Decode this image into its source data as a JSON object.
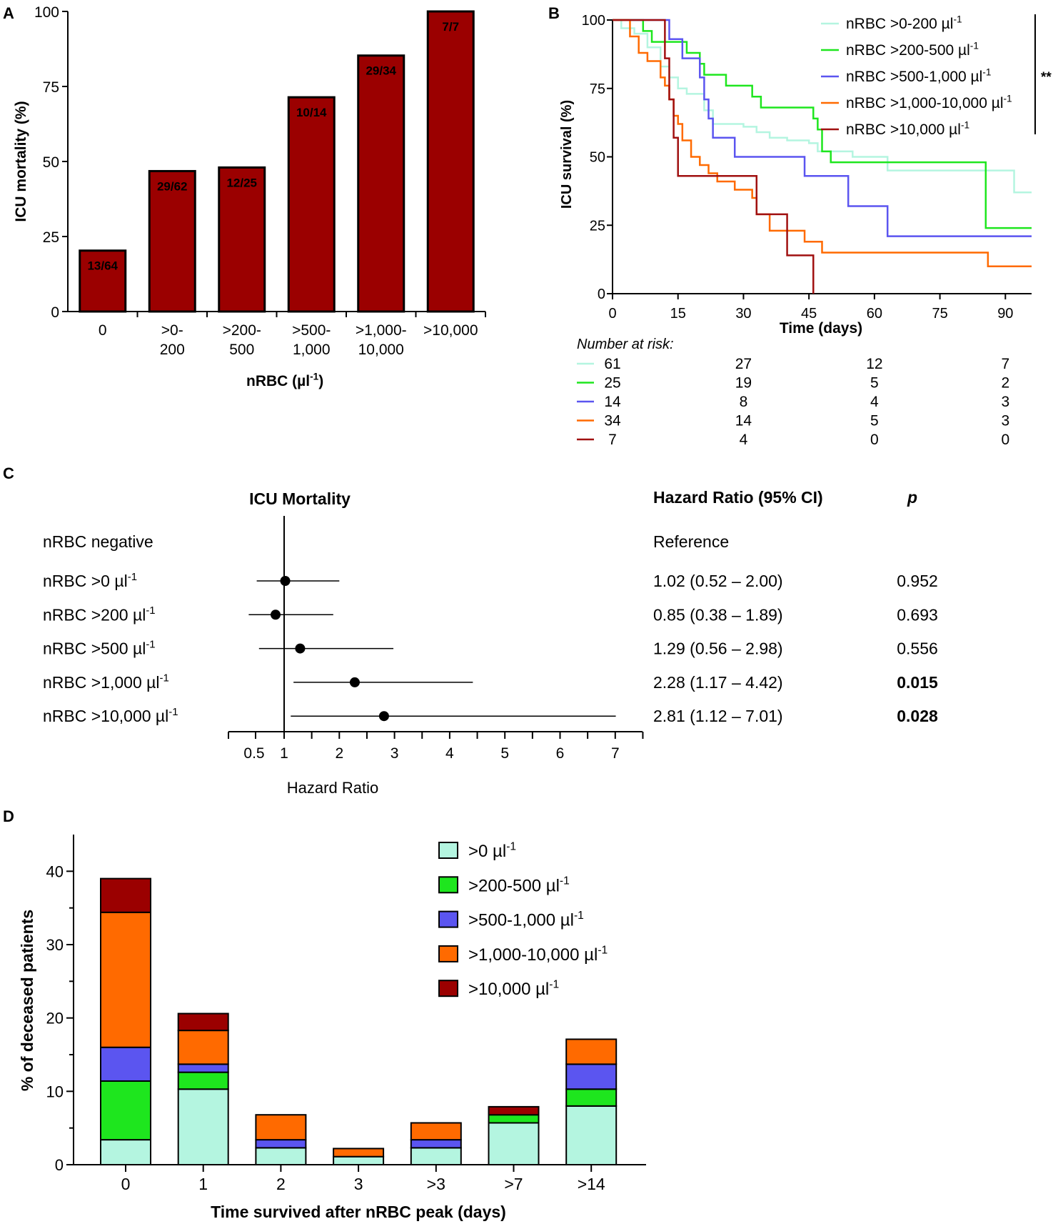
{
  "colors": {
    "bar_dark_red": "#9b0000",
    "nrbc_0_200": "#b4f5e0",
    "nrbc_200_500": "#1ee61e",
    "nrbc_500_1000": "#5b55f0",
    "nrbc_1000_10000": "#ff6a00",
    "nrbc_10000": "#a01010"
  },
  "chart_data": [
    {
      "panel": "A",
      "type": "bar",
      "ylabel": "ICU mortality (%)",
      "xlabel": "nRBC (µl-1)",
      "xlabel_main": "nRBC (µl",
      "xlabel_sup": "-1",
      "xlabel_close": ")",
      "ylim": [
        0,
        100
      ],
      "yticks": [
        0,
        25,
        50,
        75,
        100
      ],
      "categories": [
        [
          "0"
        ],
        [
          ">0-",
          "200"
        ],
        [
          ">200-",
          "500"
        ],
        [
          ">500-",
          "1,000"
        ],
        [
          ">1,000-",
          "10,000"
        ],
        [
          ">10,000"
        ]
      ],
      "values": [
        20.3,
        46.8,
        48.0,
        71.4,
        85.3,
        100
      ],
      "labels": [
        "13/64",
        "29/62",
        "12/25",
        "10/14",
        "29/34",
        "7/7"
      ]
    },
    {
      "panel": "B",
      "type": "line",
      "ylabel": "ICU survival (%)",
      "xlabel": "Time (days)",
      "xlim": [
        0,
        96
      ],
      "ylim": [
        0,
        100
      ],
      "xticks": [
        0,
        15,
        30,
        45,
        60,
        75,
        90
      ],
      "yticks": [
        0,
        25,
        50,
        75,
        100
      ],
      "significance": "**",
      "series": [
        {
          "name": "nRBC >0-200",
          "unit": "µl",
          "sup": "-1",
          "color": "#b4f5e0",
          "steps": [
            [
              0,
              100
            ],
            [
              2,
              97
            ],
            [
              5,
              95
            ],
            [
              8,
              90
            ],
            [
              11,
              83
            ],
            [
              13,
              79
            ],
            [
              15,
              75
            ],
            [
              17,
              73
            ],
            [
              21,
              67
            ],
            [
              23,
              62
            ],
            [
              30,
              61
            ],
            [
              33,
              59
            ],
            [
              36,
              57
            ],
            [
              40,
              56
            ],
            [
              45,
              55
            ],
            [
              47,
              52
            ],
            [
              55,
              50
            ],
            [
              63,
              45
            ],
            [
              85,
              45
            ],
            [
              92,
              37
            ],
            [
              96,
              37
            ]
          ]
        },
        {
          "name": "nRBC >200-500",
          "unit": "µl",
          "sup": "-1",
          "color": "#1ee61e",
          "steps": [
            [
              0,
              100
            ],
            [
              7,
              96
            ],
            [
              9,
              92
            ],
            [
              17,
              88
            ],
            [
              20,
              84
            ],
            [
              21,
              80
            ],
            [
              26,
              76
            ],
            [
              32,
              72
            ],
            [
              34,
              68
            ],
            [
              46,
              64
            ],
            [
              47,
              60
            ],
            [
              48,
              52
            ],
            [
              50,
              48
            ],
            [
              85,
              48
            ],
            [
              85.5,
              24
            ],
            [
              96,
              24
            ]
          ]
        },
        {
          "name": "nRBC >500-1,000",
          "unit": "µl",
          "sup": "-1",
          "color": "#5b55f0",
          "steps": [
            [
              0,
              100
            ],
            [
              13,
              93
            ],
            [
              16,
              86
            ],
            [
              20,
              79
            ],
            [
              21,
              71
            ],
            [
              22,
              64
            ],
            [
              23,
              57
            ],
            [
              28,
              50
            ],
            [
              44,
              43
            ],
            [
              54,
              32
            ],
            [
              63,
              21
            ],
            [
              96,
              21
            ]
          ]
        },
        {
          "name": "nRBC >1,000-10,000",
          "unit": "µl",
          "sup": "-1",
          "color": "#ff6a00",
          "steps": [
            [
              0,
              100
            ],
            [
              4,
              94
            ],
            [
              6,
              88
            ],
            [
              8,
              85
            ],
            [
              11,
              79
            ],
            [
              12,
              76
            ],
            [
              13,
              71
            ],
            [
              14,
              65
            ],
            [
              15,
              62
            ],
            [
              16,
              56
            ],
            [
              18,
              50
            ],
            [
              20,
              47
            ],
            [
              22,
              44
            ],
            [
              24,
              41
            ],
            [
              28,
              38
            ],
            [
              32,
              35
            ],
            [
              33,
              29
            ],
            [
              36,
              23
            ],
            [
              44,
              19
            ],
            [
              48,
              15
            ],
            [
              85,
              15
            ],
            [
              86,
              10
            ],
            [
              96,
              10
            ]
          ]
        },
        {
          "name": "nRBC >10,000",
          "unit": "µl",
          "sup": "-1",
          "color": "#a01010",
          "steps": [
            [
              0,
              100
            ],
            [
              12,
              86
            ],
            [
              13,
              71
            ],
            [
              14,
              57
            ],
            [
              15,
              43
            ],
            [
              33,
              29
            ],
            [
              40,
              14
            ],
            [
              46,
              0
            ]
          ]
        }
      ],
      "risk_title": "Number at risk:",
      "risk_times": [
        0,
        30,
        60,
        90
      ],
      "risk_table": [
        [
          "61",
          "27",
          "12",
          "7"
        ],
        [
          "25",
          "19",
          "5",
          "2"
        ],
        [
          "14",
          "8",
          "4",
          "3"
        ],
        [
          "34",
          "14",
          "5",
          "3"
        ],
        [
          "7",
          "4",
          "0",
          "0"
        ]
      ]
    },
    {
      "panel": "C",
      "type": "forest",
      "title": "ICU Mortality",
      "col_hr": "Hazard Ratio (95% CI)",
      "col_p": "p",
      "xlabel": "Hazard  Ratio",
      "xticks": [
        0.5,
        1,
        2,
        3,
        4,
        5,
        6,
        7
      ],
      "reference_label": "nRBC negative",
      "reference_text": "Reference",
      "rows": [
        {
          "label": "nRBC >0 µl",
          "sup": "-1",
          "hr": 1.02,
          "lo": 0.52,
          "hi": 2.0,
          "text": "1.02 (0.52 – 2.00)",
          "p": "0.952",
          "bold": false
        },
        {
          "label": "nRBC >200 µl",
          "sup": "-1",
          "hr": 0.85,
          "lo": 0.38,
          "hi": 1.89,
          "text": "0.85 (0.38 – 1.89)",
          "p": "0.693",
          "bold": false
        },
        {
          "label": "nRBC >500 µl",
          "sup": "-1",
          "hr": 1.29,
          "lo": 0.56,
          "hi": 2.98,
          "text": "1.29 (0.56 – 2.98)",
          "p": "0.556",
          "bold": false
        },
        {
          "label": "nRBC >1,000 µl",
          "sup": "-1",
          "hr": 2.28,
          "lo": 1.17,
          "hi": 4.42,
          "text": "2.28 (1.17 – 4.42)",
          "p": "0.015",
          "bold": true
        },
        {
          "label": "nRBC >10,000 µl",
          "sup": "-1",
          "hr": 2.81,
          "lo": 1.12,
          "hi": 7.01,
          "text": "2.81 (1.12 – 7.01)",
          "p": "0.028",
          "bold": true
        }
      ]
    },
    {
      "panel": "D",
      "type": "stacked-bar",
      "ylabel": "% of deceased patients",
      "xlabel": "Time survived after nRBC peak (days)",
      "ylim": [
        0,
        45
      ],
      "yticks": [
        0,
        10,
        20,
        30,
        40
      ],
      "categories": [
        "0",
        "1",
        "2",
        "3",
        ">3",
        ">7",
        ">14"
      ],
      "series": [
        {
          "name": ">0 µl",
          "sup": "-1",
          "color": "#b4f5e0",
          "values": [
            3.4,
            10.3,
            2.3,
            1.1,
            2.3,
            5.7,
            8.0
          ]
        },
        {
          "name": ">200-500 µl",
          "sup": "-1",
          "color": "#1ee61e",
          "values": [
            8.0,
            2.3,
            0,
            0,
            0,
            1.1,
            2.3
          ]
        },
        {
          "name": ">500-1,000 µl",
          "sup": "-1",
          "color": "#5b55f0",
          "values": [
            4.6,
            1.1,
            1.1,
            0,
            1.1,
            0,
            3.4
          ]
        },
        {
          "name": ">1,000-10,000 µl",
          "sup": "-1",
          "color": "#ff6a00",
          "values": [
            18.4,
            4.6,
            3.4,
            1.1,
            2.3,
            0,
            3.4
          ]
        },
        {
          "name": ">10,000 µl",
          "sup": "-1",
          "color": "#9b0000",
          "values": [
            4.6,
            2.3,
            0,
            0,
            0,
            1.1,
            0
          ]
        }
      ]
    }
  ],
  "panel_letters": [
    "A",
    "B",
    "C",
    "D"
  ]
}
